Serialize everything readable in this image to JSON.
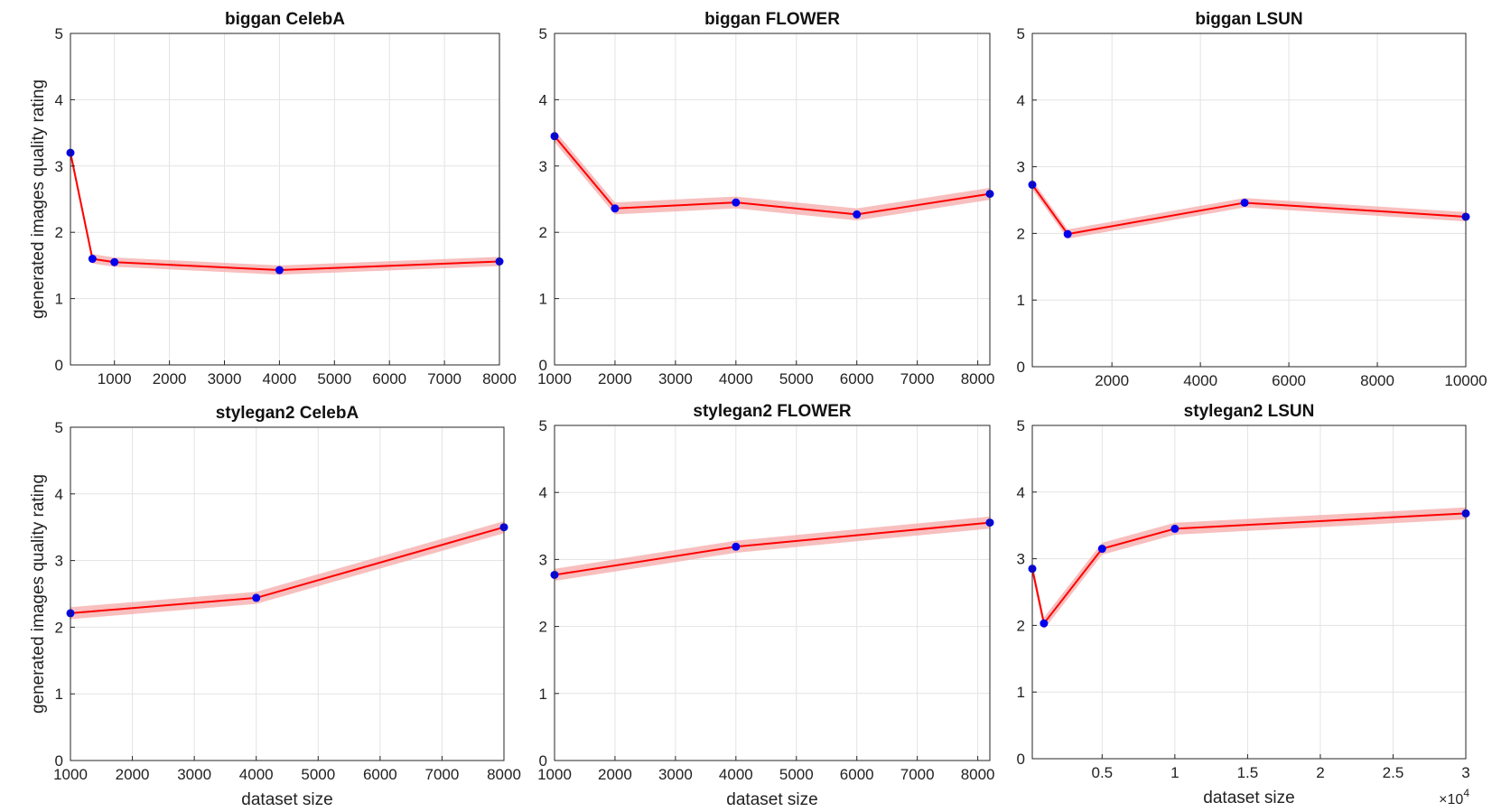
{
  "chart_data": [
    {
      "type": "line",
      "title": "biggan CelebA",
      "xlabel": "",
      "ylabel": "generated images quality rating",
      "xlim": [
        200,
        8000
      ],
      "ylim": [
        0,
        5
      ],
      "xticks": [
        1000,
        2000,
        3000,
        4000,
        5000,
        6000,
        7000,
        8000
      ],
      "xticklabels": [
        "1000",
        "2000",
        "3000",
        "4000",
        "5000",
        "6000",
        "7000",
        "8000"
      ],
      "yticks": [
        0,
        1,
        2,
        3,
        4,
        5
      ],
      "yticklabels": [
        "0",
        "1",
        "2",
        "3",
        "4",
        "5"
      ],
      "grid": true,
      "series": [
        {
          "x": [
            200,
            600,
            1000,
            4000,
            8000
          ],
          "y": [
            3.2,
            1.6,
            1.55,
            1.43,
            1.56
          ],
          "band": 0.07
        }
      ]
    },
    {
      "type": "line",
      "title": "biggan FLOWER",
      "xlabel": "",
      "ylabel": "",
      "xlim": [
        1000,
        8200
      ],
      "ylim": [
        0,
        5
      ],
      "xticks": [
        1000,
        2000,
        3000,
        4000,
        5000,
        6000,
        7000,
        8000
      ],
      "xticklabels": [
        "1000",
        "2000",
        "3000",
        "4000",
        "5000",
        "6000",
        "7000",
        "8000"
      ],
      "yticks": [
        0,
        1,
        2,
        3,
        4,
        5
      ],
      "yticklabels": [
        "0",
        "1",
        "2",
        "3",
        "4",
        "5"
      ],
      "grid": true,
      "series": [
        {
          "x": [
            1000,
            2000,
            4000,
            6000,
            8200
          ],
          "y": [
            3.45,
            2.36,
            2.45,
            2.27,
            2.58
          ],
          "band": 0.09
        }
      ]
    },
    {
      "type": "line",
      "title": "biggan LSUN",
      "xlabel": "",
      "ylabel": "",
      "xlim": [
        200,
        10000
      ],
      "ylim": [
        0,
        5
      ],
      "xticks": [
        2000,
        4000,
        6000,
        8000,
        10000
      ],
      "xticklabels": [
        "2000",
        "4000",
        "6000",
        "8000",
        "10000"
      ],
      "yticks": [
        0,
        1,
        2,
        3,
        4,
        5
      ],
      "yticklabels": [
        "0",
        "1",
        "2",
        "3",
        "4",
        "5"
      ],
      "grid": true,
      "series": [
        {
          "x": [
            200,
            1000,
            5000,
            10000
          ],
          "y": [
            2.73,
            1.99,
            2.46,
            2.25
          ],
          "band": 0.07
        }
      ]
    },
    {
      "type": "line",
      "title": "stylegan2 CelebA",
      "xlabel": "dataset size",
      "ylabel": "generated images quality rating",
      "xlim": [
        1000,
        8000
      ],
      "ylim": [
        0,
        5
      ],
      "xticks": [
        1000,
        2000,
        3000,
        4000,
        5000,
        6000,
        7000,
        8000
      ],
      "xticklabels": [
        "1000",
        "2000",
        "3000",
        "4000",
        "5000",
        "6000",
        "7000",
        "8000"
      ],
      "yticks": [
        0,
        1,
        2,
        3,
        4,
        5
      ],
      "yticklabels": [
        "0",
        "1",
        "2",
        "3",
        "4",
        "5"
      ],
      "grid": true,
      "series": [
        {
          "x": [
            1000,
            4000,
            8000
          ],
          "y": [
            2.21,
            2.44,
            3.5
          ],
          "band": 0.09
        }
      ]
    },
    {
      "type": "line",
      "title": "stylegan2 FLOWER",
      "xlabel": "dataset size",
      "ylabel": "",
      "xlim": [
        1000,
        8200
      ],
      "ylim": [
        0,
        5
      ],
      "xticks": [
        1000,
        2000,
        3000,
        4000,
        5000,
        6000,
        7000,
        8000
      ],
      "xticklabels": [
        "1000",
        "2000",
        "3000",
        "4000",
        "5000",
        "6000",
        "7000",
        "8000"
      ],
      "yticks": [
        0,
        1,
        2,
        3,
        4,
        5
      ],
      "yticklabels": [
        "0",
        "1",
        "2",
        "3",
        "4",
        "5"
      ],
      "grid": true,
      "series": [
        {
          "x": [
            1000,
            4000,
            8200
          ],
          "y": [
            2.77,
            3.19,
            3.55
          ],
          "band": 0.09
        }
      ]
    },
    {
      "type": "line",
      "title": "stylegan2 LSUN",
      "xlabel": "dataset size",
      "ylabel": "",
      "xlim": [
        200,
        30000
      ],
      "ylim": [
        0,
        5
      ],
      "xticks": [
        5000,
        10000,
        15000,
        20000,
        25000,
        30000
      ],
      "xticklabels": [
        "0.5",
        "1",
        "1.5",
        "2",
        "2.5",
        "3"
      ],
      "x_exponent": "×10",
      "x_exponent_power": "4",
      "yticks": [
        0,
        1,
        2,
        3,
        4,
        5
      ],
      "yticklabels": [
        "0",
        "1",
        "2",
        "3",
        "4",
        "5"
      ],
      "grid": true,
      "series": [
        {
          "x": [
            200,
            1000,
            5000,
            10000,
            30000
          ],
          "y": [
            2.85,
            2.03,
            3.15,
            3.45,
            3.68
          ],
          "band": 0.09
        }
      ]
    }
  ],
  "style": {
    "line_color": "#ff0000",
    "band_color": "#f6a9a9",
    "marker_color": "#0000ee",
    "grid_color": "#e3e3e3",
    "axis_color": "#262626"
  }
}
